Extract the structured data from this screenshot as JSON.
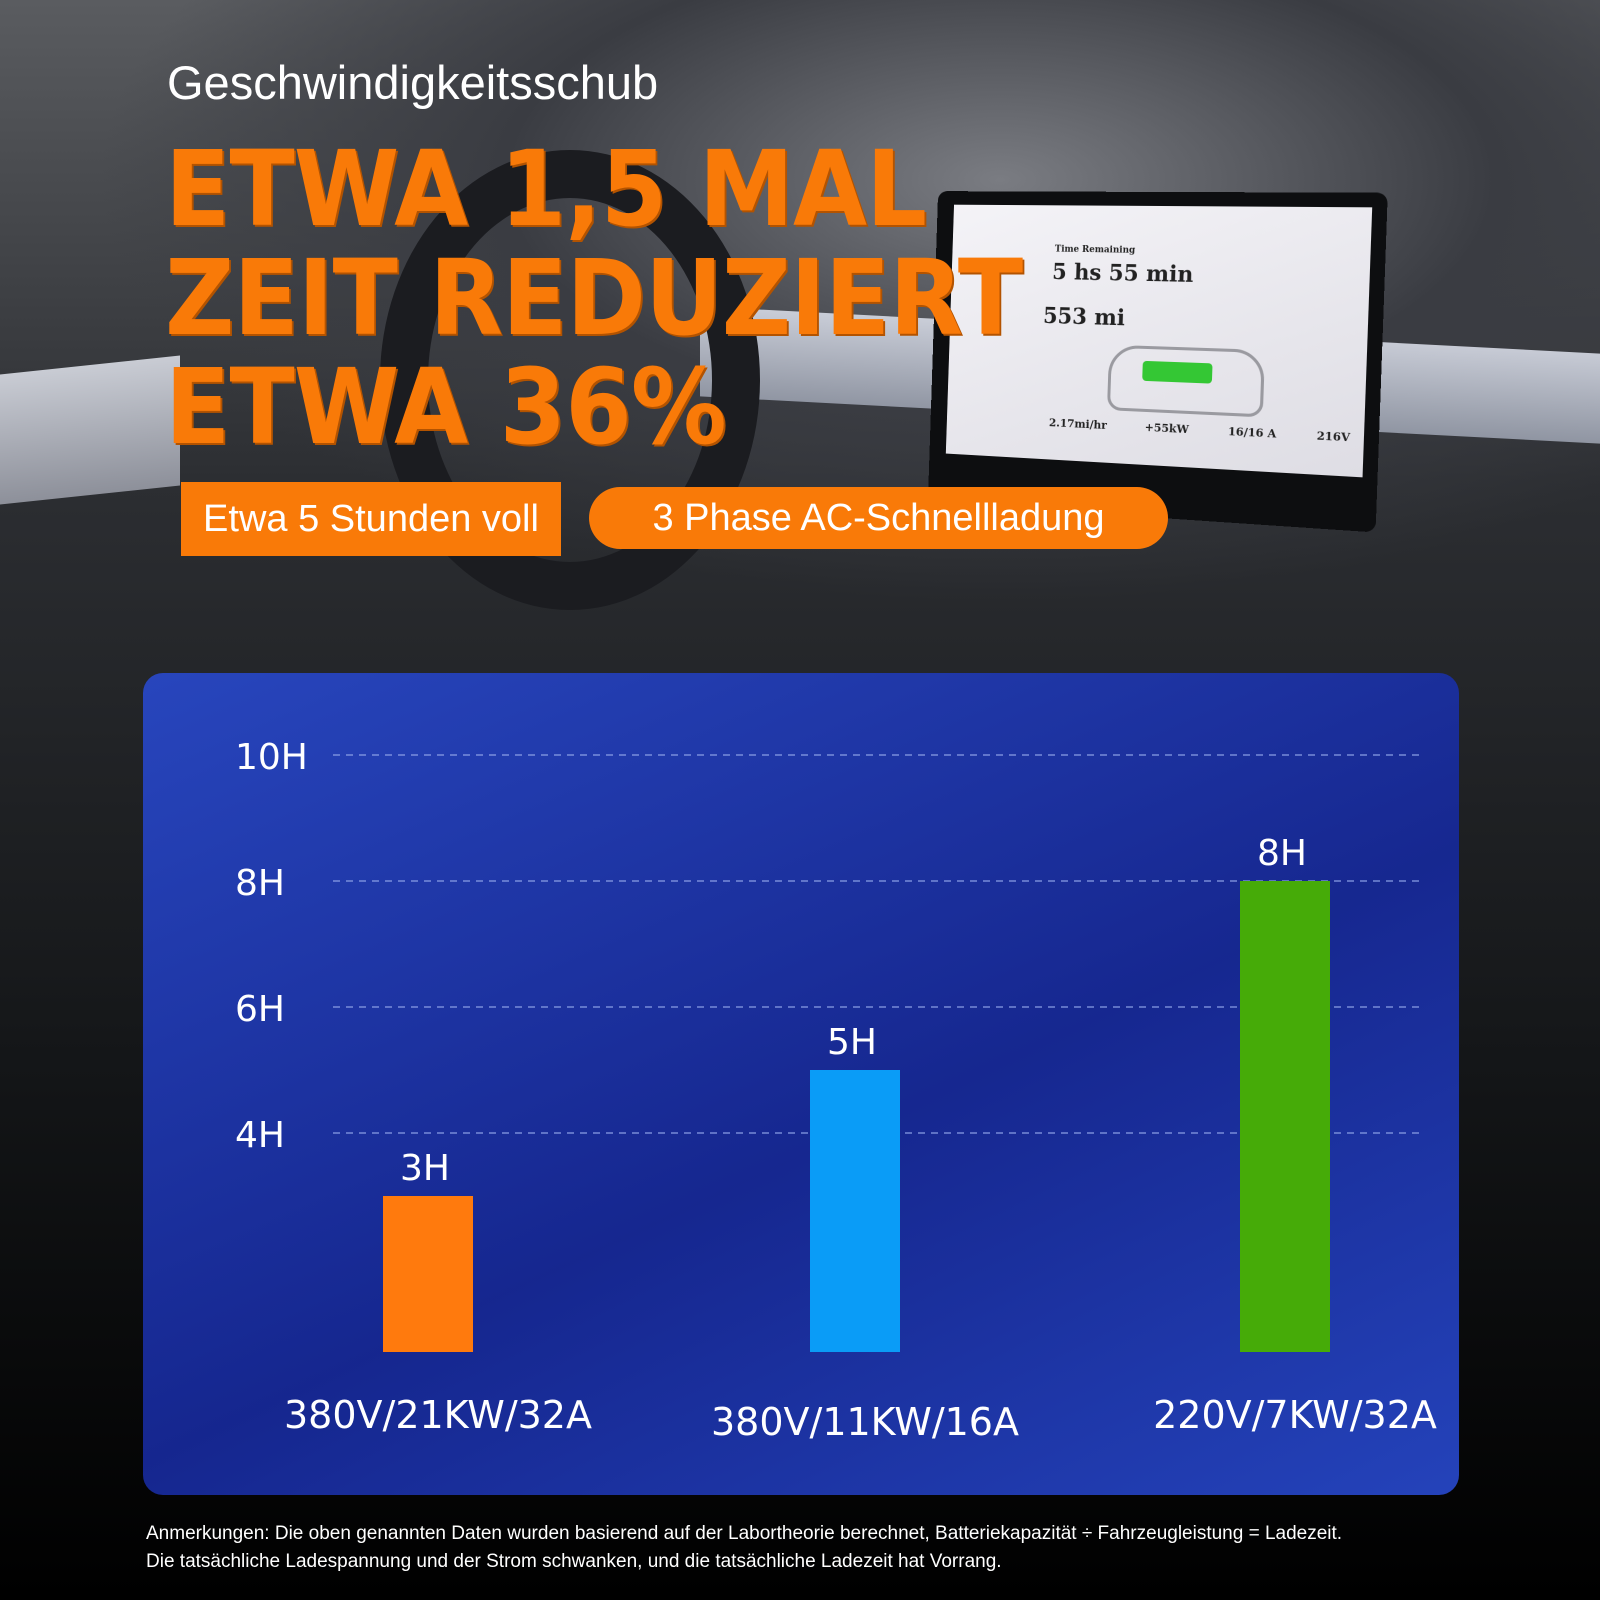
{
  "header": {
    "subtitle": "Geschwindigkeitsschub",
    "headline_lines": [
      "ETWA 1,5 MAL",
      "ZEIT REDUZIERT",
      "ETWA 36%"
    ],
    "badge_left": "Etwa 5 Stunden voll",
    "badge_right": "3 Phase AC-Schnellladung"
  },
  "screen": {
    "label": "Time Remaining",
    "time": "5 hs 55 min",
    "range": "553 mi",
    "stats": [
      "2.17mi/hr",
      "+55kW",
      "16/16 A",
      "216V"
    ]
  },
  "chart_data": {
    "type": "bar",
    "categories": [
      "380V/21KW/32A",
      "380V/11KW/16A",
      "220V/7KW/32A"
    ],
    "values": [
      3,
      5,
      8
    ],
    "data_labels": [
      "3H",
      "5H",
      "8H"
    ],
    "colors": [
      "#ff7a0d",
      "#0a9cf7",
      "#46ab08"
    ],
    "y_ticks": [
      {
        "value": 4,
        "label": "4H"
      },
      {
        "value": 6,
        "label": "6H"
      },
      {
        "value": 8,
        "label": "8H"
      },
      {
        "value": 10,
        "label": "10H"
      }
    ],
    "ylim": [
      0,
      10
    ],
    "grid": "dashed horizontal",
    "legend": "none"
  },
  "footnote": {
    "line1": "Anmerkungen: Die oben genannten Daten wurden basierend auf der Labortheorie berechnet, Batteriekapazität ÷ Fahrzeugleistung = Ladezeit.",
    "line2": "Die tatsächliche Ladespannung und der Strom schwanken, und die tatsächliche Ladezeit hat Vorrang."
  }
}
